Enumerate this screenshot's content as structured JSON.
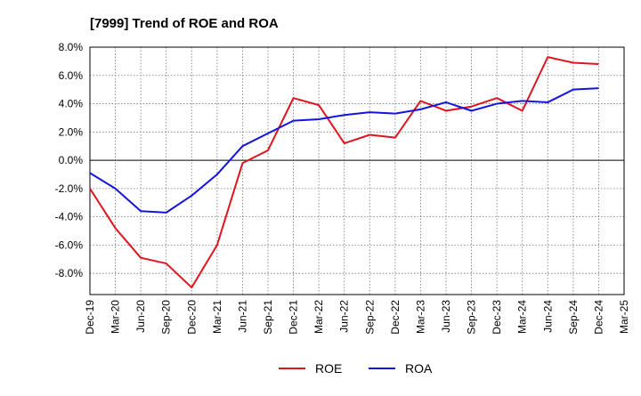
{
  "chart_data": {
    "type": "line",
    "title": "[7999]  Trend of ROE and ROA",
    "xlabel": "",
    "ylabel": "",
    "categories": [
      "Dec-19",
      "Mar-20",
      "Jun-20",
      "Sep-20",
      "Dec-20",
      "Mar-21",
      "Jun-21",
      "Sep-21",
      "Dec-21",
      "Mar-22",
      "Jun-22",
      "Sep-22",
      "Dec-22",
      "Mar-23",
      "Jun-23",
      "Sep-23",
      "Dec-23",
      "Mar-24",
      "Jun-24",
      "Sep-24",
      "Dec-24",
      "Mar-25"
    ],
    "y_tick_labels": [
      "8.0%",
      "6.0%",
      "4.0%",
      "2.0%",
      "0.0%",
      "-2.0%",
      "-4.0%",
      "-6.0%",
      "-8.0%"
    ],
    "y_ticks": [
      8,
      6,
      4,
      2,
      0,
      -2,
      -4,
      -6,
      -8
    ],
    "ylim": [
      -9.5,
      8.0
    ],
    "grid": true,
    "legend_position": "bottom-center",
    "series": [
      {
        "name": "ROE",
        "color": "#e0141e",
        "values": [
          -2.0,
          -4.8,
          -6.9,
          -7.3,
          -9.0,
          -6.0,
          -0.2,
          0.7,
          4.4,
          3.9,
          1.2,
          1.8,
          1.6,
          4.2,
          3.5,
          3.8,
          4.4,
          3.5,
          7.3,
          6.9,
          6.8,
          null
        ]
      },
      {
        "name": "ROA",
        "color": "#1414e0",
        "values": [
          -0.9,
          -2.0,
          -3.6,
          -3.7,
          -2.5,
          -1.0,
          1.0,
          1.9,
          2.8,
          2.9,
          3.2,
          3.4,
          3.3,
          3.6,
          4.1,
          3.5,
          4.0,
          4.2,
          4.1,
          5.0,
          5.1,
          null
        ]
      }
    ]
  }
}
